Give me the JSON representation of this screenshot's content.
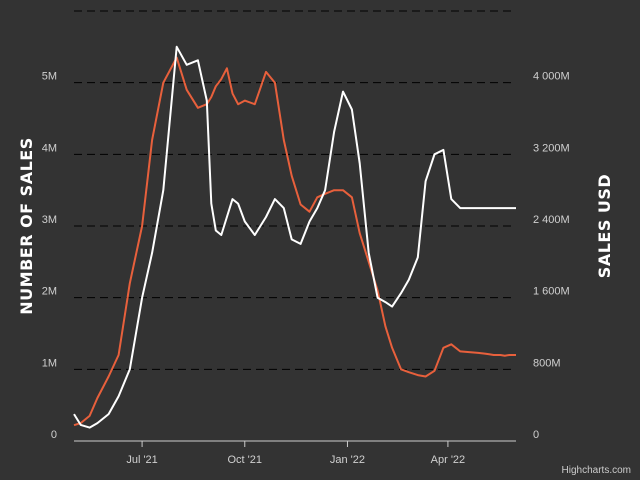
{
  "chart_data": {
    "type": "line",
    "background": "#333333",
    "grid": "dashed",
    "credit": "Highcharts.com",
    "x": [
      "2021-05-01",
      "2021-05-07",
      "2021-05-15",
      "2021-05-22",
      "2021-06-01",
      "2021-06-10",
      "2021-06-20",
      "2021-07-01",
      "2021-07-10",
      "2021-07-20",
      "2021-08-01",
      "2021-08-10",
      "2021-08-20",
      "2021-08-28",
      "2021-09-01",
      "2021-09-05",
      "2021-09-10",
      "2021-09-15",
      "2021-09-20",
      "2021-09-25",
      "2021-10-01",
      "2021-10-10",
      "2021-10-20",
      "2021-10-28",
      "2021-11-05",
      "2021-11-12",
      "2021-11-20",
      "2021-11-28",
      "2021-12-05",
      "2021-12-12",
      "2021-12-20",
      "2021-12-28",
      "2022-01-05",
      "2022-01-12",
      "2022-01-20",
      "2022-01-28",
      "2022-02-04",
      "2022-02-10",
      "2022-02-18",
      "2022-02-25",
      "2022-03-05",
      "2022-03-12",
      "2022-03-20",
      "2022-03-28",
      "2022-04-04",
      "2022-04-12",
      "2022-04-20",
      "2022-04-28",
      "2022-05-04",
      "2022-05-08",
      "2022-05-12",
      "2022-05-18",
      "2022-05-22",
      "2022-05-26",
      "2022-06-01"
    ],
    "x_ticks": [
      "Jul '21",
      "Oct '21",
      "Jan '22",
      "Apr '22"
    ],
    "x_tick_dates": [
      "2021-07-01",
      "2021-10-01",
      "2022-01-01",
      "2022-04-01"
    ],
    "y_left": {
      "label": "NUMBER OF SALES",
      "ticks": [
        "0",
        "1M",
        "2M",
        "3M",
        "4M",
        "5M"
      ],
      "min": 0,
      "max": 6000000,
      "tick_values": [
        0,
        1000000,
        2000000,
        3000000,
        4000000,
        5000000
      ]
    },
    "y_right": {
      "label": "SALES USD",
      "ticks": [
        "0",
        "800M",
        "1 600M",
        "2 400M",
        "3 200M",
        "4 000M"
      ],
      "min": 0,
      "max": 4800,
      "tick_values": [
        0,
        800,
        1600,
        2400,
        3200,
        4000
      ]
    },
    "series": [
      {
        "color": "#e8603c",
        "axis": "left",
        "values": [
          220000,
          250000,
          350000,
          600000,
          900000,
          1200000,
          2200000,
          3000000,
          4200000,
          5000000,
          5350000,
          4900000,
          4650000,
          4700000,
          4800000,
          4950000,
          5050000,
          5200000,
          4850000,
          4700000,
          4750000,
          4700000,
          5150000,
          5000000,
          4200000,
          3700000,
          3300000,
          3200000,
          3400000,
          3450000,
          3500000,
          3500000,
          3400000,
          2900000,
          2500000,
          2100000,
          1600000,
          1300000,
          1000000,
          960000,
          920000,
          900000,
          980000,
          1300000,
          1350000,
          1250000,
          1240000,
          1230000,
          1220000,
          1210000,
          1200000,
          1200000,
          1190000,
          1200000,
          1200000
        ]
      },
      {
        "color": "#ffffff",
        "axis": "right",
        "values": [
          300,
          180,
          150,
          200,
          300,
          500,
          800,
          1600,
          2100,
          2800,
          4400,
          4200,
          4250,
          3800,
          2650,
          2350,
          2300,
          2500,
          2700,
          2650,
          2450,
          2300,
          2500,
          2700,
          2600,
          2250,
          2200,
          2450,
          2600,
          2800,
          3450,
          3900,
          3700,
          3100,
          2100,
          1600,
          1550,
          1500,
          1650,
          1800,
          2050,
          2900,
          3200,
          3250,
          2700,
          2600,
          2600,
          2600,
          2600,
          2600,
          2600,
          2600,
          2600,
          2600,
          2600
        ]
      }
    ]
  }
}
